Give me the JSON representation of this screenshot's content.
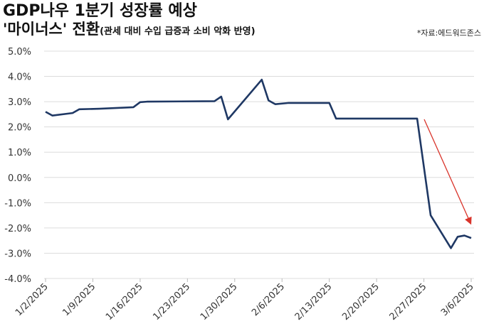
{
  "chart_data": {
    "type": "line",
    "title": "GDP나우 1분기 성장률 예상",
    "subtitle": "'마이너스' 전환",
    "subtitle_note": "(관세 대비 수입 급증과 소비 악화 반영)",
    "source": "*자료:에드워드존스",
    "x": [
      "2025-01-02",
      "2025-01-03",
      "2025-01-06",
      "2025-01-07",
      "2025-01-10",
      "2025-01-15",
      "2025-01-16",
      "2025-01-17",
      "2025-01-27",
      "2025-01-28",
      "2025-01-29",
      "2025-02-03",
      "2025-02-04",
      "2025-02-05",
      "2025-02-07",
      "2025-02-13",
      "2025-02-14",
      "2025-02-26",
      "2025-02-28",
      "2025-03-03",
      "2025-03-04",
      "2025-03-05",
      "2025-03-06"
    ],
    "series": [
      {
        "name": "GDPNow",
        "color": "#1f3864",
        "values": [
          2.6,
          2.45,
          2.55,
          2.7,
          2.72,
          2.78,
          2.98,
          3.0,
          3.02,
          3.2,
          2.3,
          3.87,
          3.05,
          2.9,
          2.95,
          2.95,
          2.33,
          2.33,
          -1.5,
          -2.8,
          -2.35,
          -2.3,
          -2.4
        ]
      }
    ],
    "xlim": [
      "2025-01-02",
      "2025-03-06"
    ],
    "xticks": [
      {
        "value": "2025-01-02",
        "label": "1/2/2025"
      },
      {
        "value": "2025-01-09",
        "label": "1/9/2025"
      },
      {
        "value": "2025-01-16",
        "label": "1/16/2025"
      },
      {
        "value": "2025-01-23",
        "label": "1/23/2025"
      },
      {
        "value": "2025-01-30",
        "label": "1/30/2025"
      },
      {
        "value": "2025-02-06",
        "label": "2/6/2025"
      },
      {
        "value": "2025-02-13",
        "label": "2/13/2025"
      },
      {
        "value": "2025-02-20",
        "label": "2/20/2025"
      },
      {
        "value": "2025-02-27",
        "label": "2/27/2025"
      },
      {
        "value": "2025-03-06",
        "label": "3/6/2025"
      }
    ],
    "ylim": [
      -4,
      5
    ],
    "yticks": [
      {
        "value": -4,
        "label": "-4.0%"
      },
      {
        "value": -3,
        "label": "-3.0%"
      },
      {
        "value": -2,
        "label": "-2.0%"
      },
      {
        "value": -1,
        "label": "-1.0%"
      },
      {
        "value": 0,
        "label": "0.0%"
      },
      {
        "value": 1,
        "label": "1.0%"
      },
      {
        "value": 2,
        "label": "2.0%"
      },
      {
        "value": 3,
        "label": "3.0%"
      },
      {
        "value": 4,
        "label": "4.0%"
      },
      {
        "value": 5,
        "label": "5.0%"
      }
    ],
    "grid": true
  }
}
